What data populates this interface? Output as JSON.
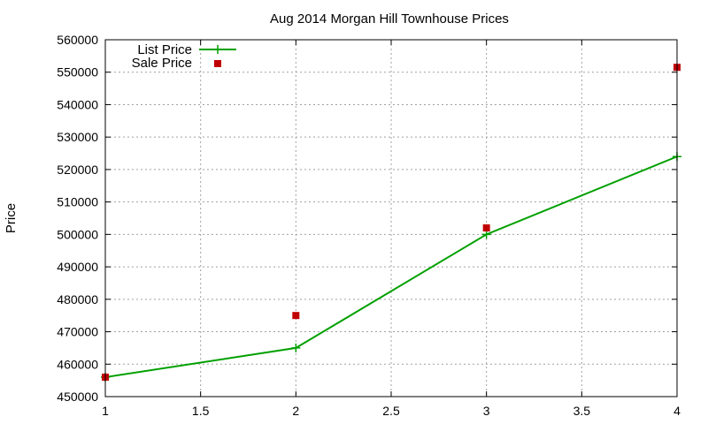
{
  "chart_data": {
    "type": "line",
    "title": "Aug 2014 Morgan Hill Townhouse Prices",
    "xlabel": "",
    "ylabel": "Price",
    "xlim": [
      1,
      4
    ],
    "ylim": [
      450000,
      560000
    ],
    "grid": true,
    "legend_position": "top-left",
    "x_ticks": [
      "1",
      "1.5",
      "2",
      "2.5",
      "3",
      "3.5",
      "4"
    ],
    "y_ticks": [
      "450000",
      "460000",
      "470000",
      "480000",
      "490000",
      "500000",
      "510000",
      "520000",
      "530000",
      "540000",
      "550000",
      "560000"
    ],
    "series": [
      {
        "name": "List Price",
        "style": "line-with-plus",
        "color": "#00a000",
        "x": [
          1,
          2,
          3,
          4
        ],
        "values": [
          456000,
          465000,
          500000,
          524000
        ]
      },
      {
        "name": "Sale Price",
        "style": "square-markers",
        "color": "#c00000",
        "x": [
          1,
          2,
          3,
          4
        ],
        "values": [
          456000,
          475000,
          502000,
          551500
        ]
      }
    ]
  }
}
